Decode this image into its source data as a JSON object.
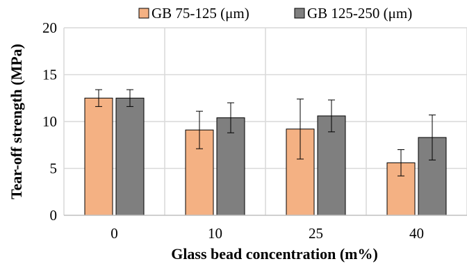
{
  "chart_data": {
    "type": "bar",
    "title": "",
    "xlabel": "Glass bead concentration (m%)",
    "ylabel": "Tear-off strength (MPa)",
    "categories": [
      "0",
      "10",
      "25",
      "40"
    ],
    "ylim": [
      0,
      20
    ],
    "yticks": [
      0,
      5,
      10,
      15,
      20
    ],
    "grid": true,
    "legend_position": "top",
    "series": [
      {
        "name": "GB 75-125 (μm)",
        "color": "#f4b183",
        "values": [
          12.5,
          9.1,
          9.2,
          5.6
        ],
        "error": [
          0.9,
          2.0,
          3.2,
          1.4
        ]
      },
      {
        "name": "GB 125-250 (μm)",
        "color": "#7f7f7f",
        "values": [
          12.5,
          10.4,
          10.6,
          8.3
        ],
        "error": [
          0.9,
          1.6,
          1.7,
          2.4
        ]
      }
    ]
  }
}
